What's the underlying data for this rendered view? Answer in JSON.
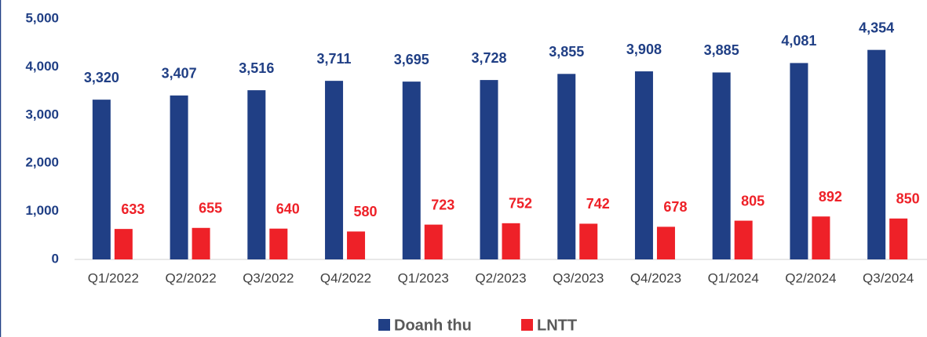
{
  "chart_data": {
    "type": "bar",
    "categories": [
      "Q1/2022",
      "Q2/2022",
      "Q3/2022",
      "Q4/2022",
      "Q1/2023",
      "Q2/2023",
      "Q3/2023",
      "Q4/2023",
      "Q1/2024",
      "Q2/2024",
      "Q3/2024"
    ],
    "series": [
      {
        "name": "Doanh thu",
        "color": "#203f85",
        "values": [
          3320,
          3407,
          3516,
          3711,
          3695,
          3728,
          3855,
          3908,
          3885,
          4081,
          4354
        ],
        "value_labels": [
          "3,320",
          "3,407",
          "3,516",
          "3,711",
          "3,695",
          "3,728",
          "3,855",
          "3,908",
          "3,885",
          "4,081",
          "4,354"
        ]
      },
      {
        "name": "LNTT",
        "color": "#ee2128",
        "values": [
          633,
          655,
          640,
          580,
          723,
          752,
          742,
          678,
          805,
          892,
          850
        ],
        "value_labels": [
          "633",
          "655",
          "640",
          "580",
          "723",
          "752",
          "742",
          "678",
          "805",
          "892",
          "850"
        ]
      }
    ],
    "ylim": [
      0,
      5000
    ],
    "yticks": [
      0,
      {
        "value": 1000,
        "label": "1,000"
      },
      {
        "value": 2000,
        "label": "2,000"
      },
      {
        "value": 3000,
        "label": "3,000"
      },
      {
        "value": 4000,
        "label": "4,000"
      },
      {
        "value": 5000,
        "label": "5,000"
      }
    ],
    "grid": false,
    "legend": "bottom"
  }
}
